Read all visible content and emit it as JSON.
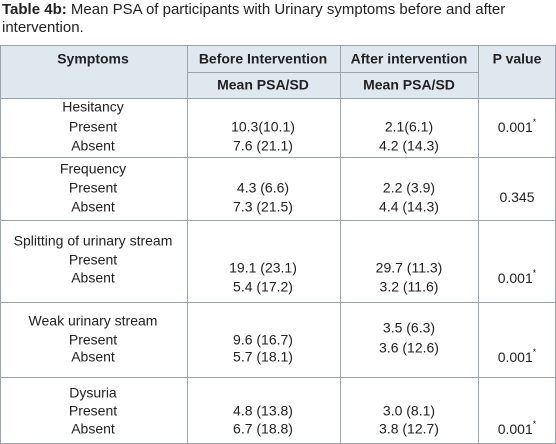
{
  "caption": {
    "label": "Table 4b:",
    "text": "Mean PSA of participants with Urinary symptoms before and after intervention."
  },
  "table": {
    "header": [
      "Symptoms",
      "Before Intervention",
      "After intervention",
      "P value"
    ],
    "subheader": [
      "Mean PSA/SD",
      "Mean PSA/SD"
    ],
    "rows": [
      {
        "symptom": "Hesitancy",
        "levels": [
          "Present",
          "Absent"
        ],
        "before": [
          "10.3(10.1)",
          "7.6 (21.1)"
        ],
        "after": [
          "2.1(6.1)",
          "4.2 (14.3)"
        ],
        "p_value": "0.001",
        "p_note": "*"
      },
      {
        "symptom": "Frequency",
        "levels": [
          "Present",
          "Absent"
        ],
        "before": [
          "4.3 (6.6)",
          "7.3 (21.5)"
        ],
        "after": [
          "2.2 (3.9)",
          "4.4 (14.3)"
        ],
        "p_value": "0.345"
      },
      {
        "symptom": "Splitting of urinary stream",
        "levels": [
          "Present",
          "Absent"
        ],
        "before": [
          "19.1 (23.1)",
          "5.4 (17.2)"
        ],
        "after": [
          "29.7 (11.3)",
          "3.2 (11.6)"
        ],
        "p_value": "0.001",
        "p_note": "*"
      },
      {
        "symptom": "Weak urinary stream",
        "levels": [
          "Present",
          "Absent"
        ],
        "before": [
          "9.6 (16.7)",
          "5.7 (18.1)"
        ],
        "after": [
          "3.5 (6.3)",
          "3.6 (12.6)"
        ],
        "p_value": "0.001",
        "p_note": "*"
      },
      {
        "symptom": "Dysuria",
        "levels": [
          "Present",
          "Absent"
        ],
        "before": [
          "4.8 (13.8)",
          "6.7 (18.8)"
        ],
        "after": [
          "3.0 (8.1)",
          "3.8 (12.7)"
        ],
        "p_value": "0.001",
        "p_note": "*"
      }
    ]
  }
}
